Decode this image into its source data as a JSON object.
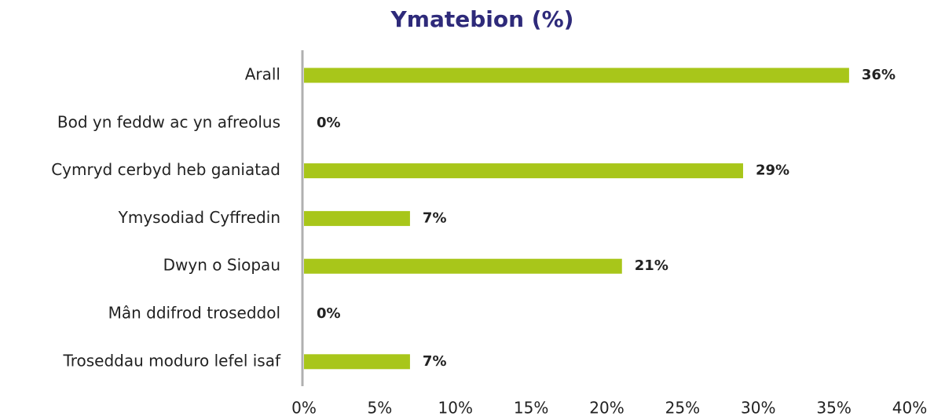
{
  "chart_data": {
    "type": "bar",
    "orientation": "horizontal",
    "title": "Ymatebion (%)",
    "categories": [
      "Arall",
      "Bod yn feddw ac yn afreolus",
      "Cymryd cerbyd heb ganiatad",
      "Ymysodiad Cyffredin",
      "Dwyn o Siopau",
      "Mân ddifrod troseddol",
      "Troseddau moduro lefel isaf"
    ],
    "values": [
      36,
      0,
      29,
      7,
      21,
      0,
      7
    ],
    "value_labels": [
      "36%",
      "0%",
      "29%",
      "7%",
      "21%",
      "0%",
      "7%"
    ],
    "color": "#a8c61a",
    "xlim": [
      0,
      40
    ],
    "xticks": [
      {
        "value": 0,
        "label": "0%"
      },
      {
        "value": 5,
        "label": "5%"
      },
      {
        "value": 10,
        "label": "10%"
      },
      {
        "value": 15,
        "label": "15%"
      },
      {
        "value": 20,
        "label": "20%"
      },
      {
        "value": 25,
        "label": "25%"
      },
      {
        "value": 30,
        "label": "30%"
      },
      {
        "value": 35,
        "label": "35%"
      },
      {
        "value": 40,
        "label": "40%"
      }
    ],
    "grid": false
  }
}
